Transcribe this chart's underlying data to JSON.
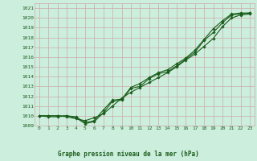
{
  "title": "Graphe pression niveau de la mer (hPa)",
  "bg_color": "#cceedd",
  "grid_color": "#ccaaaa",
  "line_color": "#1a5c1a",
  "text_color": "#1a5c1a",
  "xlim": [
    -0.5,
    23.5
  ],
  "ylim": [
    1009,
    1021.5
  ],
  "yticks": [
    1009,
    1010,
    1011,
    1012,
    1013,
    1014,
    1015,
    1016,
    1017,
    1018,
    1019,
    1020,
    1021
  ],
  "xticks": [
    0,
    1,
    2,
    3,
    4,
    5,
    6,
    7,
    8,
    9,
    10,
    11,
    12,
    13,
    14,
    15,
    16,
    17,
    18,
    19,
    20,
    21,
    22,
    23
  ],
  "xtick_labels": [
    "0",
    "1",
    "2",
    "3",
    "4",
    "5",
    "6",
    "7",
    "8",
    "9",
    "10",
    "11",
    "12",
    "13",
    "14",
    "15",
    "16",
    "17",
    "18",
    "19",
    "20",
    "21",
    "22",
    "23"
  ],
  "line1": [
    1010.0,
    1010.0,
    1010.0,
    1010.0,
    1009.8,
    1009.2,
    1009.4,
    1010.3,
    1011.5,
    1011.6,
    1012.8,
    1013.0,
    1013.8,
    1014.3,
    1014.5,
    1015.1,
    1015.8,
    1016.5,
    1017.7,
    1018.5,
    1019.5,
    1020.3,
    1020.4,
    1020.5
  ],
  "line2": [
    1010.0,
    1010.0,
    1010.0,
    1009.9,
    1009.7,
    1009.5,
    1009.8,
    1010.2,
    1011.0,
    1011.8,
    1012.4,
    1012.9,
    1013.4,
    1013.9,
    1014.4,
    1015.0,
    1015.7,
    1016.3,
    1017.1,
    1017.9,
    1019.1,
    1020.0,
    1020.3,
    1020.4
  ],
  "line3": [
    1010.0,
    1009.9,
    1009.9,
    1010.0,
    1009.9,
    1009.3,
    1009.5,
    1010.6,
    1011.6,
    1011.7,
    1012.9,
    1013.3,
    1013.9,
    1014.4,
    1014.7,
    1015.3,
    1015.9,
    1016.7,
    1017.8,
    1018.9,
    1019.7,
    1020.4,
    1020.5,
    1020.5
  ]
}
